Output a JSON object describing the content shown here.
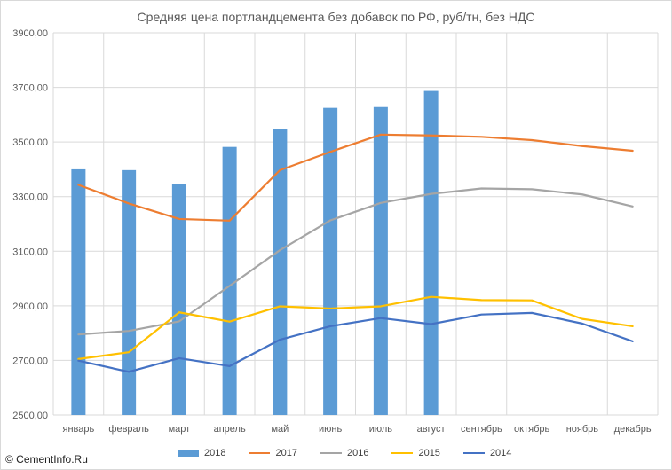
{
  "credit": "© CementInfo.Ru",
  "chart_data": {
    "type": "bar+line",
    "title": "Средняя цена портландцемента без добавок по РФ, руб/тн, без НДС",
    "categories": [
      "январь",
      "февраль",
      "март",
      "апрель",
      "май",
      "июнь",
      "июль",
      "август",
      "сентябрь",
      "октябрь",
      "ноябрь",
      "декабрь"
    ],
    "ylim": [
      2500,
      3900
    ],
    "yticks": [
      "2500,00",
      "2700,00",
      "2900,00",
      "3100,00",
      "3300,00",
      "3500,00",
      "3700,00",
      "3900,00"
    ],
    "ytick_values": [
      2500,
      2700,
      2900,
      3100,
      3300,
      3500,
      3700,
      3900
    ],
    "grid": true,
    "legend_position": "bottom",
    "series": [
      {
        "name": "2018",
        "type": "bar",
        "color": "#5b9bd5",
        "values": [
          3400,
          3397,
          3345,
          3482,
          3547,
          3625,
          3628,
          3687,
          null,
          null,
          null,
          null
        ]
      },
      {
        "name": "2017",
        "type": "line",
        "color": "#ed7d31",
        "values": [
          3343,
          3275,
          3218,
          3212,
          3397,
          3464,
          3527,
          3524,
          3519,
          3507,
          3485,
          3468
        ]
      },
      {
        "name": "2016",
        "type": "line",
        "color": "#a5a5a5",
        "values": [
          2795,
          2808,
          2843,
          2973,
          3104,
          3213,
          3277,
          3310,
          3330,
          3327,
          3308,
          3264
        ]
      },
      {
        "name": "2015",
        "type": "line",
        "color": "#ffc000",
        "values": [
          2705,
          2730,
          2876,
          2842,
          2898,
          2890,
          2898,
          2933,
          2921,
          2920,
          2852,
          2825
        ]
      },
      {
        "name": "2014",
        "type": "line",
        "color": "#4472c4",
        "values": [
          2699,
          2658,
          2708,
          2679,
          2776,
          2825,
          2855,
          2833,
          2868,
          2874,
          2835,
          2770
        ]
      }
    ]
  }
}
